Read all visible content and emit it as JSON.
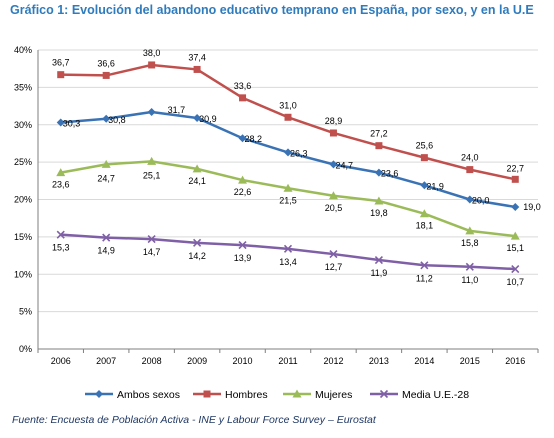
{
  "chart_data": {
    "type": "line",
    "title": "Gráfico 1: Evolución del abandono educativo temprano en España, por sexo, y en la U.E",
    "source": "Fuente: Encuesta de Población Activa - INE y Labour Force Survey – Eurostat",
    "x": [
      "2006",
      "2007",
      "2008",
      "2009",
      "2010",
      "2011",
      "2012",
      "2013",
      "2014",
      "2015",
      "2016"
    ],
    "y_ticks": [
      "0%",
      "5%",
      "10%",
      "15%",
      "20%",
      "25%",
      "30%",
      "35%",
      "40%"
    ],
    "ylim": [
      0,
      40
    ],
    "grid": true,
    "legend_position": "bottom",
    "series": [
      {
        "name": "Ambos sexos",
        "color": "#3a73b5",
        "marker": "diamond",
        "values": [
          30.3,
          30.8,
          31.7,
          30.9,
          28.2,
          26.3,
          24.7,
          23.6,
          21.9,
          20.0,
          19.0
        ],
        "labels": [
          "30,3",
          "30,8",
          "31,7",
          "30,9",
          "28,2",
          "26,3",
          "24,7",
          "23,6",
          "21,9",
          "20,0",
          "19,0"
        ]
      },
      {
        "name": "Hombres",
        "color": "#c0504d",
        "marker": "square",
        "values": [
          36.7,
          36.6,
          38.0,
          37.4,
          33.6,
          31.0,
          28.9,
          27.2,
          25.6,
          24.0,
          22.7
        ],
        "labels": [
          "36,7",
          "36,6",
          "38,0",
          "37,4",
          "33,6",
          "31,0",
          "28,9",
          "27,2",
          "25,6",
          "24,0",
          "22,7"
        ]
      },
      {
        "name": "Mujeres",
        "color": "#9bbb59",
        "marker": "triangle",
        "values": [
          23.6,
          24.7,
          25.1,
          24.1,
          22.6,
          21.5,
          20.5,
          19.8,
          18.1,
          15.8,
          15.1
        ],
        "labels": [
          "23,6",
          "24,7",
          "25,1",
          "24,1",
          "22,6",
          "21,5",
          "20,5",
          "19,8",
          "18,1",
          "15,8",
          "15,1"
        ]
      },
      {
        "name": "Media U.E.-28",
        "color": "#7f60a6",
        "marker": "x",
        "values": [
          15.3,
          14.9,
          14.7,
          14.2,
          13.9,
          13.4,
          12.7,
          11.9,
          11.2,
          11.0,
          10.7
        ],
        "labels": [
          "15,3",
          "14,9",
          "14,7",
          "14,2",
          "13,9",
          "13,4",
          "12,7",
          "11,9",
          "11,2",
          "11,0",
          "10,7"
        ]
      }
    ]
  }
}
